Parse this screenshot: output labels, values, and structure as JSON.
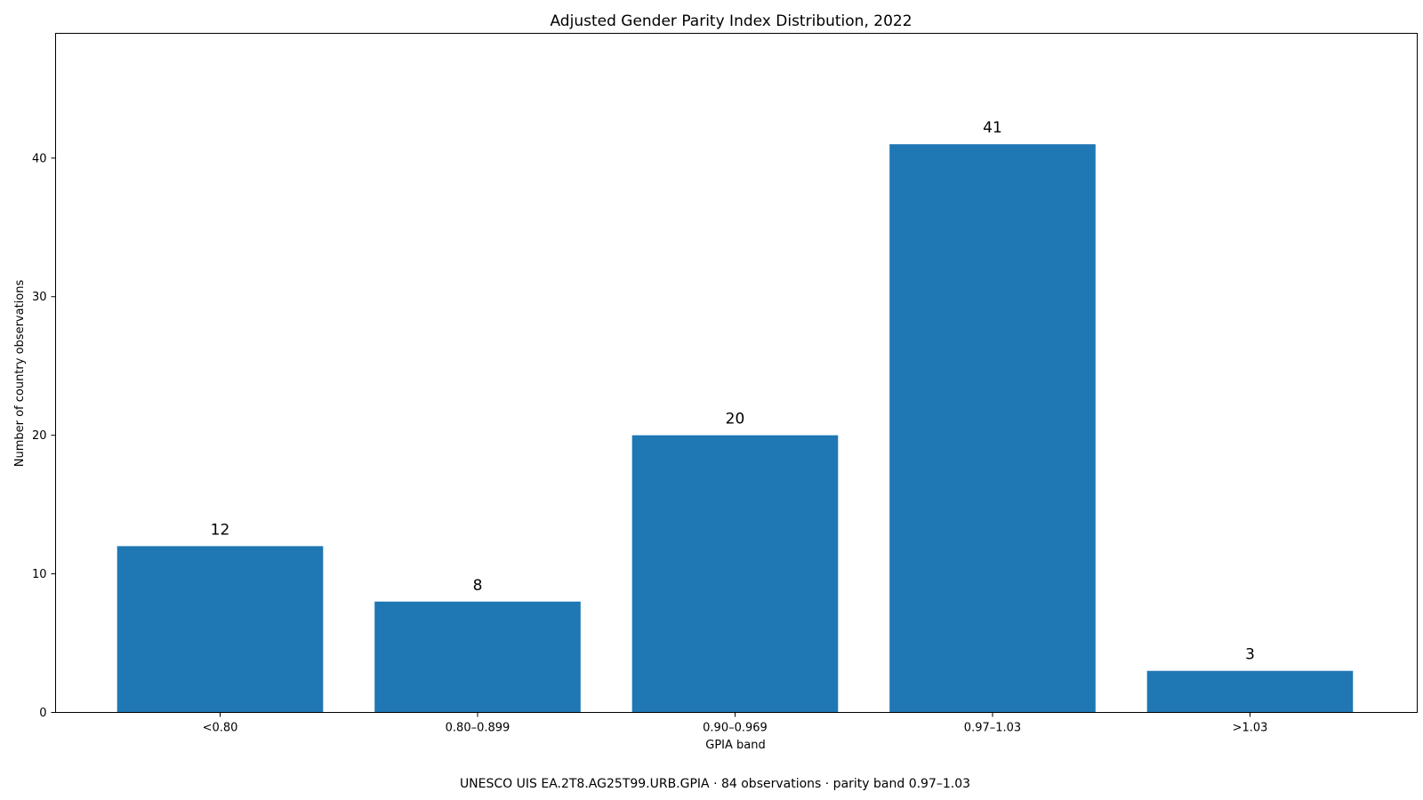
{
  "chart_data": {
    "type": "bar",
    "title": "Adjusted Gender Parity Index Distribution, 2022",
    "xlabel": "GPIA band",
    "ylabel": "Number of country observations",
    "categories": [
      "<0.80",
      "0.80–0.899",
      "0.90–0.969",
      "0.97–1.03",
      ">1.03"
    ],
    "values": [
      12,
      8,
      20,
      41,
      3
    ],
    "ylim": [
      0,
      49
    ],
    "yticks": [
      0,
      10,
      20,
      30,
      40
    ],
    "grid": false,
    "bar_color": "#1f77b4",
    "caption": "UNESCO UIS EA.2T8.AG25T99.URB.GPIA · 84 observations · parity band 0.97–1.03"
  }
}
